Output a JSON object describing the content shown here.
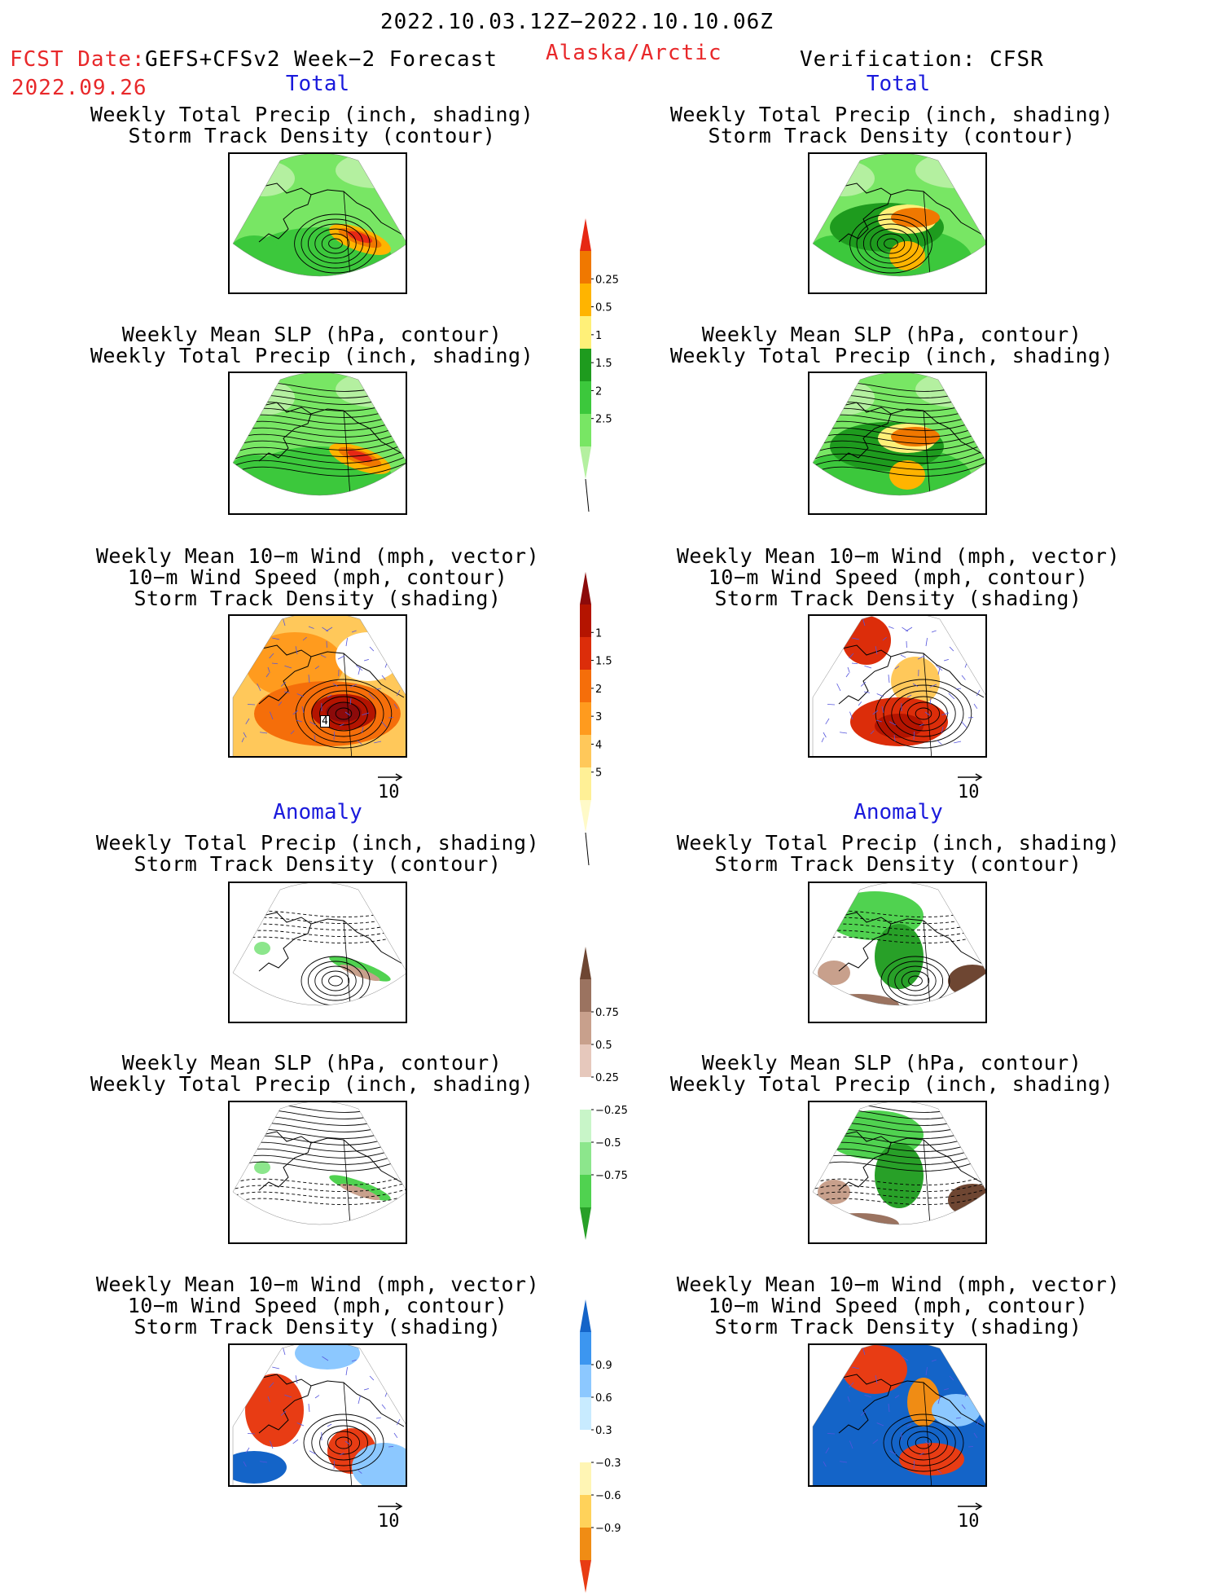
{
  "header": {
    "period": "2022.10.03.12Z−2022.10.10.06Z",
    "fcst_label": "FCST Date:",
    "fcst_model": "GEFS+CFSv2 Week−2 Forecast",
    "fcst_date": "2022.09.26",
    "region": "Alaska/Arctic",
    "verification": "Verification: CFSR"
  },
  "sections": {
    "total": "Total",
    "anomaly": "Anomaly"
  },
  "titles": {
    "precip_track": [
      "Weekly Total Precip (inch, shading)",
      "Storm Track Density (contour)"
    ],
    "slp_precip": [
      "Weekly Mean SLP (hPa, contour)",
      "Weekly Total Precip (inch, shading)"
    ],
    "wind_track": [
      "Weekly Mean 10−m Wind (mph, vector)",
      "10−m Wind Speed (mph, contour)",
      "Storm Track Density (shading)"
    ]
  },
  "vector_ref": "10",
  "panel_marker": "4",
  "colorbars": {
    "precip_total": {
      "labels": [
        "0.25",
        "0.5",
        "1",
        "1.5",
        "2",
        "2.5"
      ],
      "colors": [
        "#b4f0a0",
        "#78e664",
        "#3cc83c",
        "#1e9b1e",
        "#fff078",
        "#ffb400",
        "#f07800",
        "#e62814"
      ]
    },
    "track_total": {
      "labels": [
        "1",
        "1.5",
        "2",
        "3",
        "4",
        "5"
      ],
      "colors": [
        "#fffac8",
        "#fff096",
        "#ffc85a",
        "#ff9b1e",
        "#f56e0a",
        "#dc2d0a",
        "#b41400",
        "#8c0a0a"
      ]
    },
    "precip_anom": {
      "labels": [
        "0.75",
        "0.5",
        "0.25",
        "−0.25",
        "−0.5",
        "−0.75"
      ],
      "colors": [
        "#28a028",
        "#50d250",
        "#8ce68c",
        "#c8f5c8",
        "#ffffff",
        "#e6c8bc",
        "#c8a08c",
        "#9b7360",
        "#6e4632"
      ]
    },
    "track_anom": {
      "labels": [
        "0.9",
        "0.6",
        "0.3",
        "−0.3",
        "−0.6",
        "−0.9"
      ],
      "colors": [
        "#e83c14",
        "#f08c14",
        "#ffd25a",
        "#fff5b4",
        "#ffffff",
        "#c8ebff",
        "#8cc8ff",
        "#3c96f0",
        "#1464c8"
      ]
    }
  }
}
